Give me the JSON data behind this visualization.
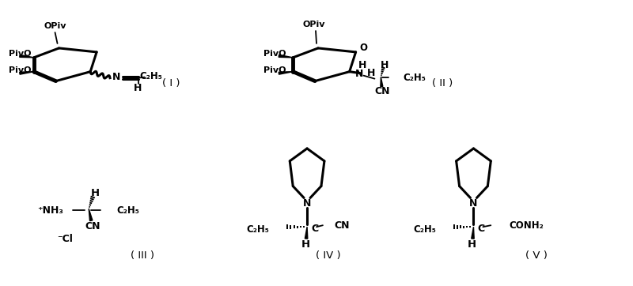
{
  "bg_color": "#ffffff",
  "label_I": "( I )",
  "label_II": "( II )",
  "label_III": "( III )",
  "label_IV": "( IV )",
  "label_V": "( V )",
  "figsize": [
    8.0,
    3.62
  ],
  "dpi": 100
}
